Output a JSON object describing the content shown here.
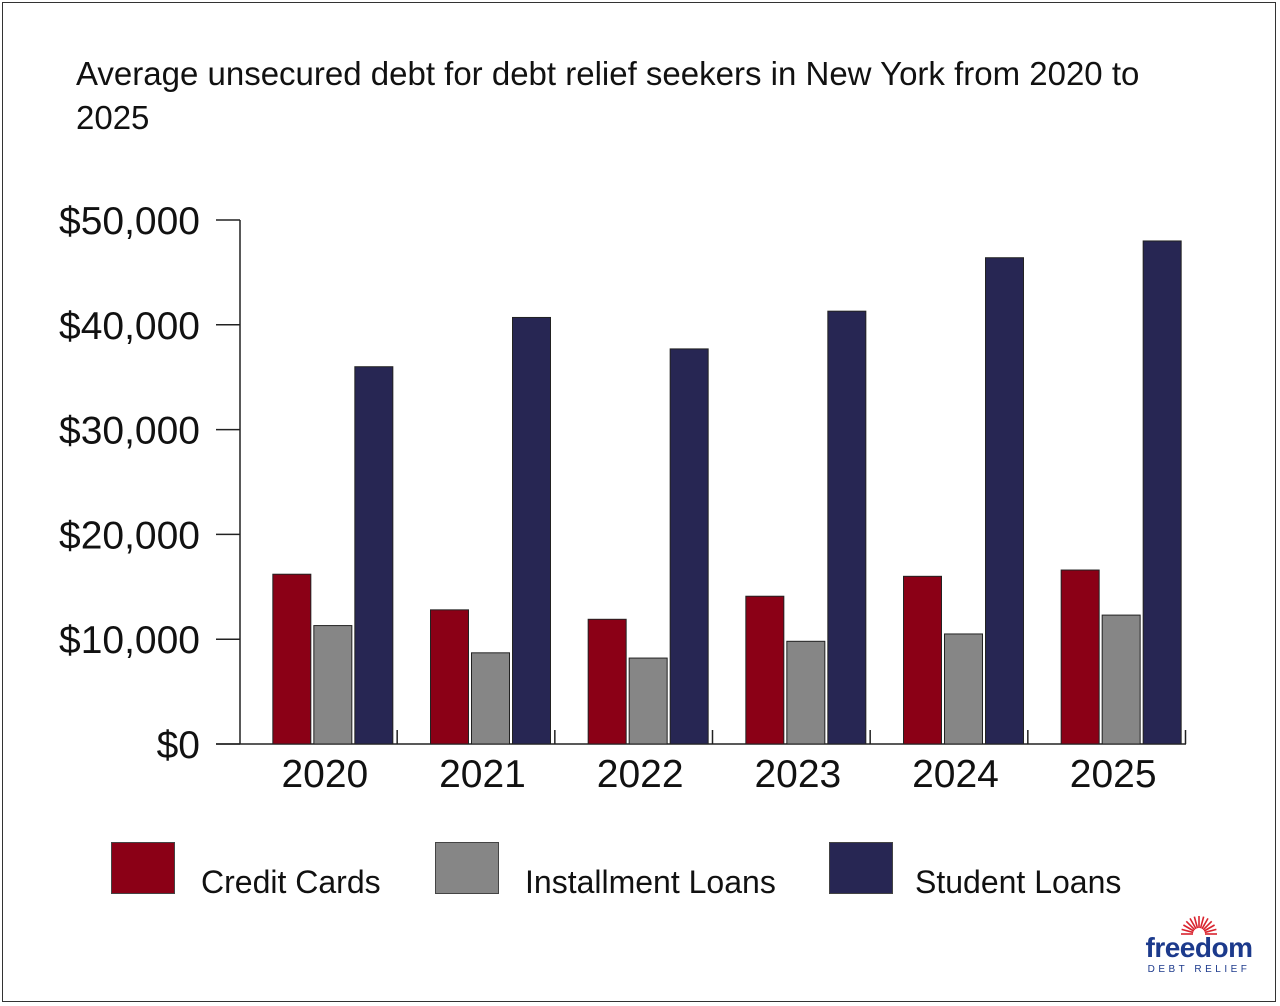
{
  "colors": {
    "credit_cards": "#8b0016",
    "installment_loans": "#868686",
    "student_loans": "#272653",
    "brand": "#1c3a8c",
    "brand_rays": "#d9232e"
  },
  "chart_data": {
    "type": "bar",
    "title": "Average unsecured debt for debt relief seekers in New York from 2020 to 2025",
    "xlabel": "",
    "ylabel": "",
    "categories": [
      "2020",
      "2021",
      "2022",
      "2023",
      "2024",
      "2025"
    ],
    "series": [
      {
        "name": "Credit Cards",
        "values": [
          16200,
          12800,
          11900,
          14100,
          16000,
          16600
        ]
      },
      {
        "name": "Installment Loans",
        "values": [
          11300,
          8700,
          8200,
          9800,
          10500,
          12300
        ]
      },
      {
        "name": "Student Loans",
        "values": [
          36000,
          40700,
          37700,
          41300,
          46400,
          48000
        ]
      }
    ],
    "ylim": [
      0,
      50000
    ],
    "yticks": [
      0,
      10000,
      20000,
      30000,
      40000,
      50000
    ],
    "ytick_labels": [
      "$0",
      "$10,000",
      "$20,000",
      "$30,000",
      "$40,000",
      "$50,000"
    ],
    "grid": false,
    "legend_position": "bottom"
  },
  "branding": {
    "logo_word": "freedom",
    "logo_subtext": "DEBT RELIEF",
    "logo_icon": "sunburst-icon"
  }
}
